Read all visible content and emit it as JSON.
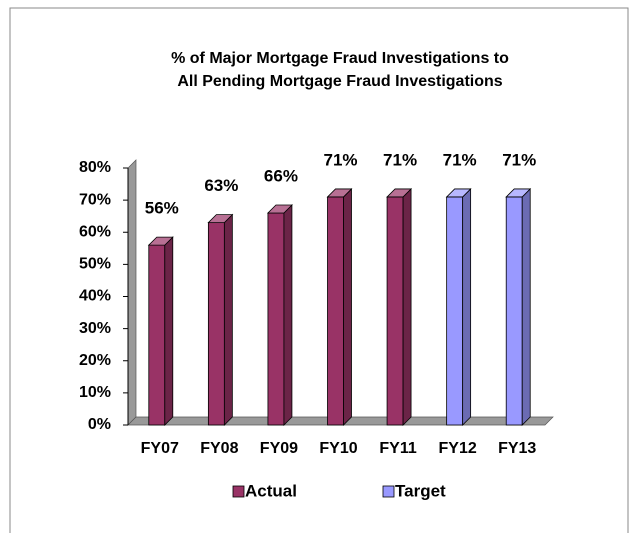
{
  "chart_data": {
    "type": "bar3d",
    "title": [
      "% of Major Mortgage Fraud Investigations to",
      "All Pending Mortgage Fraud Investigations"
    ],
    "categories": [
      "FY07",
      "FY08",
      "FY09",
      "FY10",
      "FY11",
      "FY12",
      "FY13"
    ],
    "series": [
      {
        "name": "Actual",
        "color": "#993366",
        "values": [
          56,
          63,
          66,
          71,
          71,
          null,
          null
        ],
        "value_labels": [
          "56%",
          "63%",
          "66%",
          "71%",
          "71%",
          null,
          null
        ]
      },
      {
        "name": "Target",
        "color": "#9999ff",
        "values": [
          null,
          null,
          null,
          null,
          null,
          71,
          71
        ],
        "value_labels": [
          null,
          null,
          null,
          null,
          null,
          "71%",
          "71%"
        ]
      }
    ],
    "ylim": [
      0,
      80
    ],
    "yticks": [
      {
        "value": 0,
        "label": "0%"
      },
      {
        "value": 10,
        "label": "10%"
      },
      {
        "value": 20,
        "label": "20%"
      },
      {
        "value": 30,
        "label": "30%"
      },
      {
        "value": 40,
        "label": "40%"
      },
      {
        "value": 50,
        "label": "50%"
      },
      {
        "value": 60,
        "label": "60%"
      },
      {
        "value": 70,
        "label": "70%"
      },
      {
        "value": 80,
        "label": "80%"
      }
    ],
    "legend": "bottom"
  }
}
